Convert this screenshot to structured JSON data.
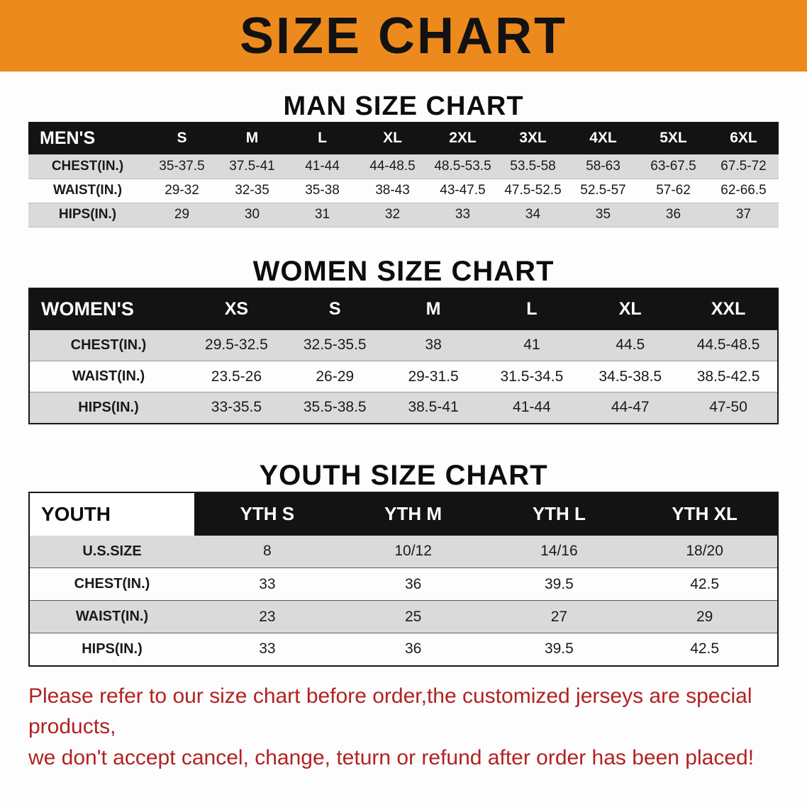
{
  "banner": {
    "title": "SIZE CHART"
  },
  "man": {
    "heading": "MAN SIZE CHART",
    "table": {
      "header": [
        "MEN'S",
        "S",
        "M",
        "L",
        "XL",
        "2XL",
        "3XL",
        "4XL",
        "5XL",
        "6XL"
      ],
      "rows": [
        [
          "CHEST(IN.)",
          "35-37.5",
          "37.5-41",
          "41-44",
          "44-48.5",
          "48.5-53.5",
          "53.5-58",
          "58-63",
          "63-67.5",
          "67.5-72"
        ],
        [
          "WAIST(IN.)",
          "29-32",
          "32-35",
          "35-38",
          "38-43",
          "43-47.5",
          "47.5-52.5",
          "52.5-57",
          "57-62",
          "62-66.5"
        ],
        [
          "HIPS(IN.)",
          "29",
          "30",
          "31",
          "32",
          "33",
          "34",
          "35",
          "36",
          "37"
        ]
      ]
    }
  },
  "women": {
    "heading": "WOMEN SIZE CHART",
    "table": {
      "header": [
        "WOMEN'S",
        "XS",
        "S",
        "M",
        "L",
        "XL",
        "XXL"
      ],
      "rows": [
        [
          "CHEST(IN.)",
          "29.5-32.5",
          "32.5-35.5",
          "38",
          "41",
          "44.5",
          "44.5-48.5"
        ],
        [
          "WAIST(IN.)",
          "23.5-26",
          "26-29",
          "29-31.5",
          "31.5-34.5",
          "34.5-38.5",
          "38.5-42.5"
        ],
        [
          "HIPS(IN.)",
          "33-35.5",
          "35.5-38.5",
          "38.5-41",
          "41-44",
          "44-47",
          "47-50"
        ]
      ]
    }
  },
  "youth": {
    "heading": "YOUTH SIZE CHART",
    "table": {
      "header": [
        "YOUTH",
        "YTH S",
        "YTH M",
        "YTH L",
        "YTH XL"
      ],
      "rows": [
        [
          "U.S.SIZE",
          "8",
          "10/12",
          "14/16",
          "18/20"
        ],
        [
          "CHEST(IN.)",
          "33",
          "36",
          "39.5",
          "42.5"
        ],
        [
          "WAIST(IN.)",
          "23",
          "25",
          "27",
          "29"
        ],
        [
          "HIPS(IN.)",
          "33",
          "36",
          "39.5",
          "42.5"
        ]
      ]
    }
  },
  "footer_note": {
    "line1": "Please refer to our size chart before order,the customized jerseys are special products,",
    "line2": "we don't accept cancel, change, teturn or refund after order has been placed!"
  },
  "colors": {
    "banner_bg": "#ed8a1e",
    "table_header_bg": "#131313",
    "row_shade": "#dadada",
    "note_red": "#b22222"
  }
}
